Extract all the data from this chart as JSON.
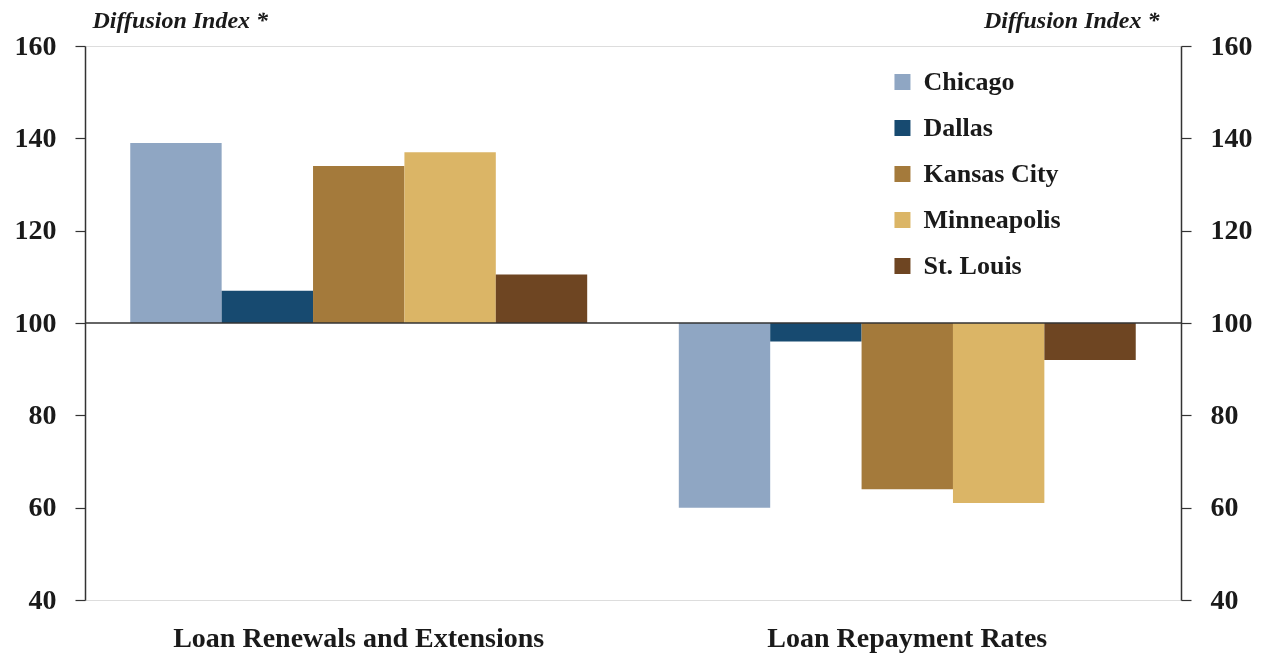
{
  "chart_data": {
    "type": "bar",
    "ylabel": "Diffusion Index *",
    "y2label": "Diffusion Index *",
    "categories": [
      "Loan Renewals and Extensions",
      "Loan Repayment Rates"
    ],
    "series": [
      {
        "name": "Chicago",
        "color": "#8fa6c3",
        "base": [
          100,
          100
        ],
        "values": [
          39,
          -40
        ]
      },
      {
        "name": "Dallas",
        "color": "#174a70",
        "base": [
          100,
          100
        ],
        "values": [
          7,
          -4
        ]
      },
      {
        "name": "Kansas City",
        "color": "#a47a3b",
        "base": [
          100,
          100
        ],
        "values": [
          34,
          -36
        ]
      },
      {
        "name": "Minneapolis",
        "color": "#dbb566",
        "base": [
          100,
          100
        ],
        "values": [
          37,
          -39
        ]
      },
      {
        "name": "St. Louis",
        "color": "#6e4522",
        "base": [
          100,
          100
        ],
        "values": [
          10.5,
          -8
        ]
      }
    ],
    "ylim": [
      40,
      160
    ],
    "yticks": [
      40,
      60,
      80,
      100,
      120,
      140,
      160
    ],
    "y2lim": [
      40,
      160
    ],
    "y2ticks": [
      40,
      60,
      80,
      100,
      120,
      140,
      160
    ],
    "ref_lines": [
      {
        "axis": "y",
        "value": 100,
        "color": "#333333"
      }
    ],
    "legend": "top right",
    "grid": false
  }
}
